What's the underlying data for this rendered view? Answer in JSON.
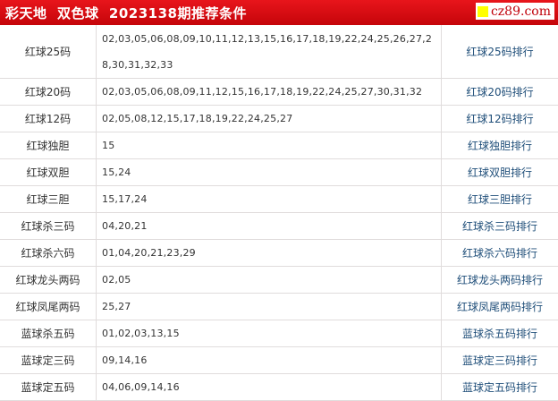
{
  "header": {
    "title": "彩天地  双色球  2023138期推荐条件",
    "logo_text": "cz89.com",
    "colors": {
      "header_red": "#d40a10",
      "link": "#1f4e79",
      "logo_yellow": "#ffff00"
    }
  },
  "rows": [
    {
      "name": "红球25码",
      "numbers": "02,03,05,06,08,09,10,11,12,13,15,16,17,18,19,22,24,25,26,27,28,30,31,32,33",
      "link": "红球25码排行"
    },
    {
      "name": "红球20码",
      "numbers": "02,03,05,06,08,09,11,12,15,16,17,18,19,22,24,25,27,30,31,32",
      "link": "红球20码排行"
    },
    {
      "name": "红球12码",
      "numbers": "02,05,08,12,15,17,18,19,22,24,25,27",
      "link": "红球12码排行"
    },
    {
      "name": "红球独胆",
      "numbers": "15",
      "link": "红球独胆排行"
    },
    {
      "name": "红球双胆",
      "numbers": "15,24",
      "link": "红球双胆排行"
    },
    {
      "name": "红球三胆",
      "numbers": "15,17,24",
      "link": "红球三胆排行"
    },
    {
      "name": "红球杀三码",
      "numbers": "04,20,21",
      "link": "红球杀三码排行"
    },
    {
      "name": "红球杀六码",
      "numbers": "01,04,20,21,23,29",
      "link": "红球杀六码排行"
    },
    {
      "name": "红球龙头两码",
      "numbers": "02,05",
      "link": "红球龙头两码排行"
    },
    {
      "name": "红球凤尾两码",
      "numbers": "25,27",
      "link": "红球凤尾两码排行"
    },
    {
      "name": "蓝球杀五码",
      "numbers": "01,02,03,13,15",
      "link": "蓝球杀五码排行"
    },
    {
      "name": "蓝球定三码",
      "numbers": "09,14,16",
      "link": "蓝球定三码排行"
    },
    {
      "name": "蓝球定五码",
      "numbers": "04,06,09,14,16",
      "link": "蓝球定五码排行"
    }
  ]
}
